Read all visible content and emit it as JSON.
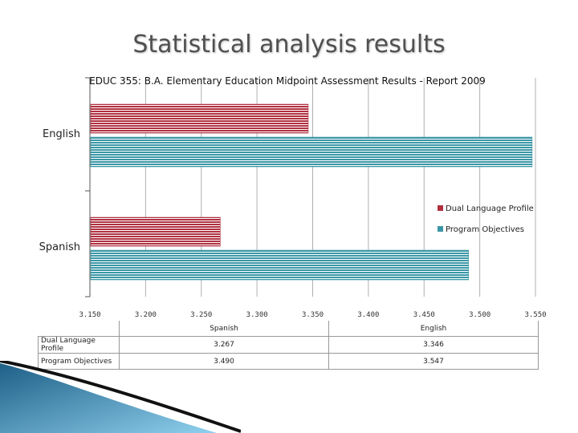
{
  "slide": {
    "title": "Statistical analysis results"
  },
  "chart_data": {
    "type": "bar",
    "orientation": "horizontal",
    "title": "EDUC 355: B.A. Elementary Education Midpoint Assessment Results - Report 2009",
    "categories": [
      "English",
      "Spanish"
    ],
    "series": [
      {
        "name": "Dual Language Profile",
        "values": [
          3.346,
          3.267
        ],
        "color": "#b03040"
      },
      {
        "name": "Program Objectives",
        "values": [
          3.547,
          3.49
        ],
        "color": "#3a97a6"
      }
    ],
    "xlim": [
      3.15,
      3.55
    ],
    "ticks": [
      "3.150",
      "3.200",
      "3.250",
      "3.300",
      "3.350",
      "3.400",
      "3.450",
      "3.500",
      "3.550"
    ],
    "grid": true,
    "legend_position": "right"
  },
  "table": {
    "columns": [
      "Spanish",
      "English"
    ],
    "rows": [
      {
        "label": "Dual Language Profile",
        "cells": [
          "3.267",
          "3.346"
        ]
      },
      {
        "label": "Program Objectives",
        "cells": [
          "3.490",
          "3.547"
        ]
      }
    ]
  }
}
